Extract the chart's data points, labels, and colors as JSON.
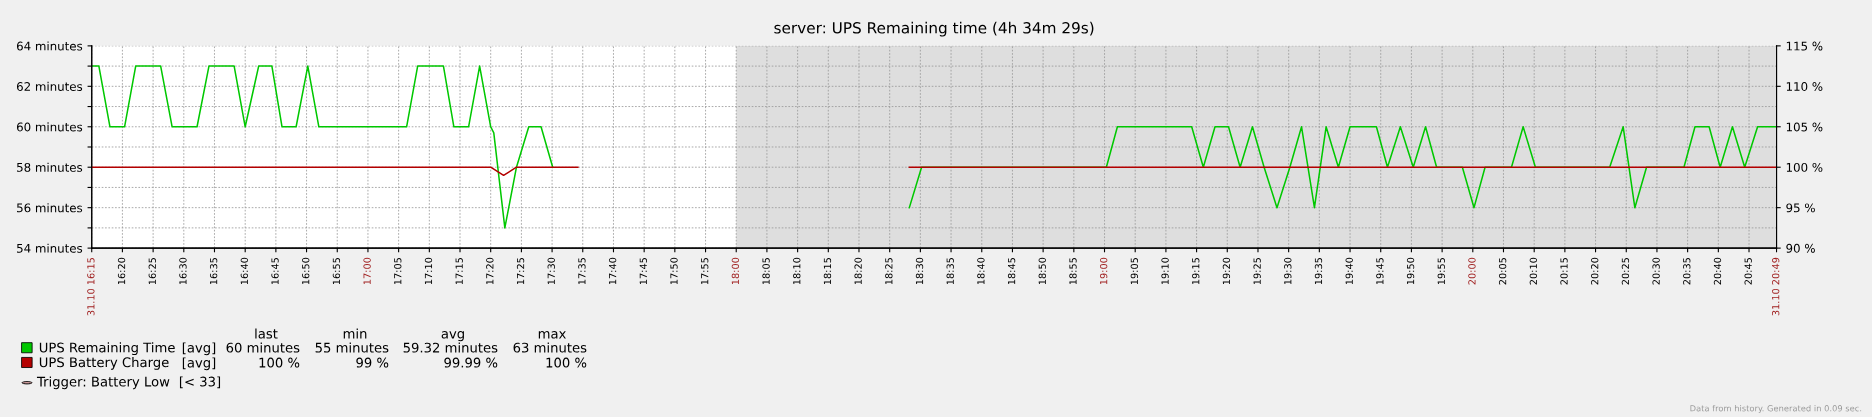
{
  "chart_data": {
    "type": "line",
    "title": "server: UPS Remaining time (4h 34m 29s)",
    "series": [
      {
        "name": "UPS Remaining Time",
        "color": "#00c800",
        "x": [
          16.25,
          16.2694,
          16.2995,
          16.3392,
          16.3694,
          16.4372,
          16.4683,
          16.536,
          16.5683,
          16.6367,
          16.6667,
          16.7033,
          16.7392,
          16.7667,
          16.805,
          16.8367,
          16.8667,
          17.105,
          17.135,
          17.205,
          17.2333,
          17.2733,
          17.3033,
          17.3333,
          17.3417,
          17.3717,
          17.4033,
          17.4367,
          17.47,
          17.5017,
          18.0,
          18.47,
          18.5033,
          19.005,
          19.035,
          19.2367,
          19.2683,
          19.3,
          19.3367,
          19.3683,
          19.4017,
          19.4333,
          19.4683,
          19.5033,
          19.535,
          19.57,
          19.6017,
          19.635,
          19.6667,
          19.7383,
          19.7683,
          19.8033,
          19.8383,
          19.8717,
          19.9017,
          19.9717,
          20.0033,
          20.0333,
          20.105,
          20.1367,
          20.17,
          20.3717,
          20.4083,
          20.44,
          20.4717,
          20.5733,
          20.6033,
          20.6417,
          20.6717,
          20.705,
          20.7383,
          20.7733,
          20.8247
        ],
        "values": [
          63,
          63,
          60,
          60,
          63,
          63,
          60,
          60,
          63,
          63,
          60,
          63,
          63,
          60,
          60,
          63,
          60,
          60,
          63,
          63,
          60,
          60,
          63,
          60,
          59.7,
          55,
          58,
          60,
          60,
          58,
          null,
          56,
          58,
          58,
          60,
          60,
          58,
          60,
          60,
          58,
          60,
          58,
          56,
          58,
          60,
          56,
          60,
          58,
          60,
          60,
          58,
          60,
          58,
          60,
          58,
          58,
          56,
          58,
          58,
          60,
          58,
          58,
          60,
          56,
          58,
          58,
          60,
          60,
          58,
          60,
          58,
          60,
          60
        ]
      },
      {
        "name": "UPS Battery Charge",
        "color": "#b40000",
        "axis": "y2",
        "x": [
          16.25,
          17.3333,
          17.3683,
          17.4033,
          17.57,
          18.0,
          18.47,
          20.8247
        ],
        "values": [
          100,
          100,
          99,
          100,
          100,
          null,
          100,
          100
        ]
      }
    ],
    "xlim": [
      16.25,
      20.8247
    ],
    "xticks": [
      {
        "value": 16.25,
        "label": "31.10 16:15"
      },
      {
        "value": 16.3333,
        "label": "16:20"
      },
      {
        "value": 16.4167,
        "label": "16:25"
      },
      {
        "value": 16.5,
        "label": "16:30"
      },
      {
        "value": 16.5833,
        "label": "16:35"
      },
      {
        "value": 16.6667,
        "label": "16:40"
      },
      {
        "value": 16.75,
        "label": "16:45"
      },
      {
        "value": 16.8333,
        "label": "16:50"
      },
      {
        "value": 16.9167,
        "label": "16:55"
      },
      {
        "value": 17,
        "label": "17:00"
      },
      {
        "value": 17.0833,
        "label": "17:05"
      },
      {
        "value": 17.1667,
        "label": "17:10"
      },
      {
        "value": 17.25,
        "label": "17:15"
      },
      {
        "value": 17.3333,
        "label": "17:20"
      },
      {
        "value": 17.4167,
        "label": "17:25"
      },
      {
        "value": 17.5,
        "label": "17:30"
      },
      {
        "value": 17.5833,
        "label": "17:35"
      },
      {
        "value": 17.6667,
        "label": "17:40"
      },
      {
        "value": 17.75,
        "label": "17:45"
      },
      {
        "value": 17.8333,
        "label": "17:50"
      },
      {
        "value": 17.9167,
        "label": "17:55"
      },
      {
        "value": 18,
        "label": "18:00"
      },
      {
        "value": 18.0833,
        "label": "18:05"
      },
      {
        "value": 18.1667,
        "label": "18:10"
      },
      {
        "value": 18.25,
        "label": "18:15"
      },
      {
        "value": 18.3333,
        "label": "18:20"
      },
      {
        "value": 18.4167,
        "label": "18:25"
      },
      {
        "value": 18.5,
        "label": "18:30"
      },
      {
        "value": 18.5833,
        "label": "18:35"
      },
      {
        "value": 18.6667,
        "label": "18:40"
      },
      {
        "value": 18.75,
        "label": "18:45"
      },
      {
        "value": 18.8333,
        "label": "18:50"
      },
      {
        "value": 18.9167,
        "label": "18:55"
      },
      {
        "value": 19,
        "label": "19:00"
      },
      {
        "value": 19.0833,
        "label": "19:05"
      },
      {
        "value": 19.1667,
        "label": "19:10"
      },
      {
        "value": 19.25,
        "label": "19:15"
      },
      {
        "value": 19.3333,
        "label": "19:20"
      },
      {
        "value": 19.4167,
        "label": "19:25"
      },
      {
        "value": 19.5,
        "label": "19:30"
      },
      {
        "value": 19.5833,
        "label": "19:35"
      },
      {
        "value": 19.6667,
        "label": "19:40"
      },
      {
        "value": 19.75,
        "label": "19:45"
      },
      {
        "value": 19.8333,
        "label": "19:50"
      },
      {
        "value": 19.9167,
        "label": "19:55"
      },
      {
        "value": 20,
        "label": "20:00"
      },
      {
        "value": 20.0833,
        "label": "20:05"
      },
      {
        "value": 20.1667,
        "label": "20:10"
      },
      {
        "value": 20.25,
        "label": "20:15"
      },
      {
        "value": 20.3333,
        "label": "20:20"
      },
      {
        "value": 20.4167,
        "label": "20:25"
      },
      {
        "value": 20.5,
        "label": "20:30"
      },
      {
        "value": 20.5833,
        "label": "20:35"
      },
      {
        "value": 20.6667,
        "label": "20:40"
      },
      {
        "value": 20.75,
        "label": "20:45"
      },
      {
        "value": 20.8247,
        "label": "31.10 20:49"
      }
    ],
    "ylim": [
      54,
      64
    ],
    "yticks": [
      {
        "value": 54,
        "label": "54 minutes"
      },
      {
        "value": 55,
        "label": null
      },
      {
        "value": 56,
        "label": "56 minutes"
      },
      {
        "value": 57,
        "label": null
      },
      {
        "value": 58,
        "label": "58 minutes"
      },
      {
        "value": 59,
        "label": null
      },
      {
        "value": 60,
        "label": "60 minutes"
      },
      {
        "value": 61,
        "label": null
      },
      {
        "value": 62,
        "label": "62 minutes"
      },
      {
        "value": 63,
        "label": null
      },
      {
        "value": 64,
        "label": "64 minutes"
      }
    ],
    "y2lim": [
      90,
      115
    ],
    "y2ticks": [
      {
        "value": 90,
        "label": "90 %"
      },
      {
        "value": 95,
        "label": "95 %"
      },
      {
        "value": 100,
        "label": "100 %"
      },
      {
        "value": 105,
        "label": "105 %"
      },
      {
        "value": 110,
        "label": "110 %"
      },
      {
        "value": 115,
        "label": "115 %"
      }
    ],
    "bands": [
      {
        "axis": "x",
        "from": 18,
        "to": 20.8247,
        "color": "#dedede"
      }
    ],
    "grid": true,
    "legend": "bottom left",
    "marker": "none",
    "line_style": "solid",
    "annotations": [
      "last",
      "min",
      "avg",
      "max",
      "[avg]",
      "60 minutes",
      "55 minutes",
      "59.32 minutes",
      "63 minutes",
      "[avg]",
      "100 %",
      "99 %",
      "99.99 %",
      "100 %",
      "Trigger: Battery Low",
      "[< 33]",
      "Data from history. Generated in 0.09 sec."
    ]
  }
}
